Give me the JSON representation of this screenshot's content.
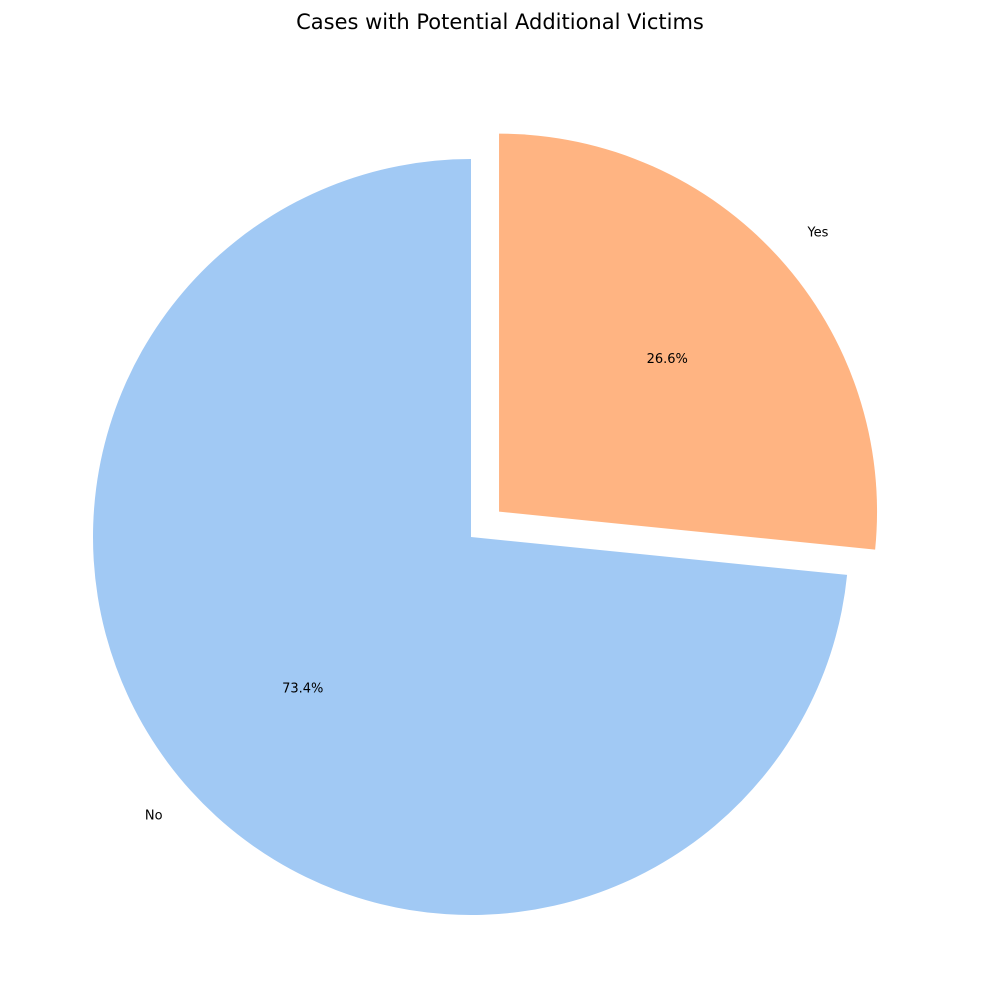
{
  "chart_data": {
    "type": "pie",
    "title": "Cases with Potential Additional Victims",
    "slices": [
      {
        "label": "No",
        "value": 73.4,
        "pct_label": "73.4%",
        "color": "#a1c9f4",
        "explode": 0
      },
      {
        "label": "Yes",
        "value": 26.6,
        "pct_label": "26.6%",
        "color": "#ffb482",
        "explode": 0.1
      }
    ],
    "start_angle_deg": 90,
    "direction": "counterclockwise",
    "legend": "none"
  }
}
